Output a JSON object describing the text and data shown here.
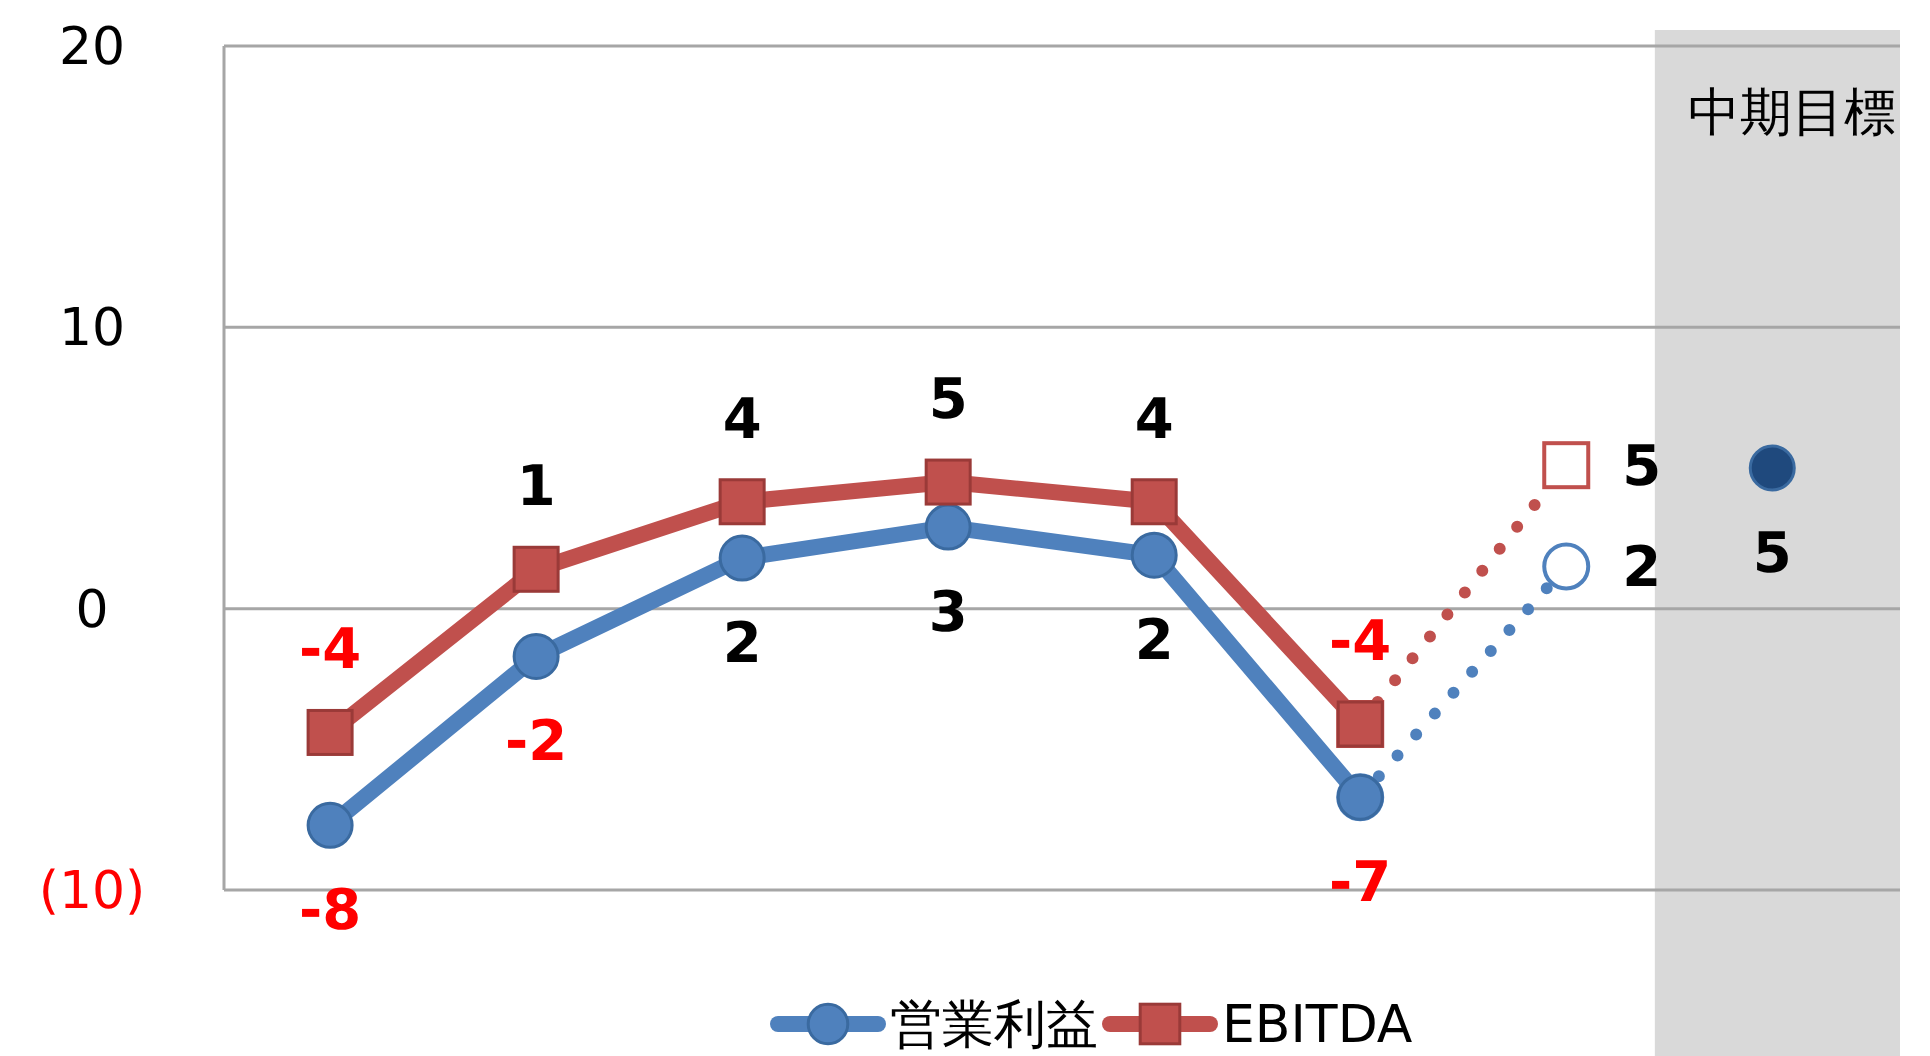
{
  "chart_data": {
    "type": "line",
    "categories": [
      null,
      null,
      null,
      null,
      null,
      null,
      null,
      null
    ],
    "ylim": [
      -10,
      20
    ],
    "yticks": [
      {
        "value": -10,
        "label": "(10)"
      },
      0,
      10,
      20
    ],
    "grid": "y",
    "legend": "bottom",
    "annotations": [
      "中期目標"
    ],
    "series": [
      {
        "name": "営業利益",
        "color": "#4f81bd",
        "marker": "circle",
        "line_style": "solid",
        "values": [
          -7.7,
          -1.7,
          1.8,
          2.9,
          1.9,
          -6.7,
          null,
          null
        ],
        "value_labels": [
          "-8",
          "-2",
          "2",
          "3",
          "2",
          "-7",
          null,
          null
        ]
      },
      {
        "name": "EBITDA",
        "color": "#c0504d",
        "marker": "square",
        "line_style": "solid",
        "values": [
          -4.4,
          1.4,
          3.8,
          4.5,
          3.8,
          -4.1,
          null,
          null
        ],
        "value_labels": [
          "-4",
          "1",
          "4",
          "5",
          "4",
          "-4",
          null,
          null
        ]
      },
      {
        "color": "#4f81bd",
        "marker": "circle",
        "line_style": "dotted",
        "values": [
          null,
          null,
          null,
          null,
          null,
          -6.7,
          1.5,
          null
        ],
        "value_labels": [
          null,
          null,
          null,
          null,
          null,
          null,
          "2",
          null
        ]
      },
      {
        "color": "#c0504d",
        "marker": "square",
        "line_style": "dotted",
        "values": [
          null,
          null,
          null,
          null,
          null,
          -4.1,
          5.1,
          null
        ],
        "value_labels": [
          null,
          null,
          null,
          null,
          null,
          null,
          "5",
          null
        ]
      },
      {
        "type": "scatter",
        "color": "#1f497d",
        "marker": "circle",
        "values": [
          null,
          null,
          null,
          null,
          null,
          null,
          null,
          5.0
        ],
        "value_labels": [
          null,
          null,
          null,
          null,
          null,
          null,
          null,
          "5"
        ]
      }
    ]
  }
}
